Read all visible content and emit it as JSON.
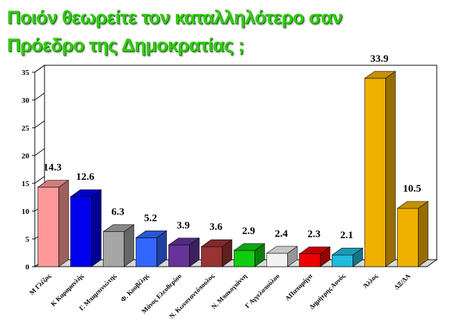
{
  "title": {
    "line1": "Ποιόν θεωρείτε τον καταλληλότερο  σαν",
    "line2": "Πρόεδρο της  Δημοκρατίας ;"
  },
  "chart_data": {
    "type": "bar",
    "title": "Ποιόν θεωρείτε τον καταλληλότερο  σαν Πρόεδρο της  Δημοκρατίας ;",
    "categories": [
      "Μ Γλέζος",
      "Κ Καραμανλής",
      "Γ. Μπαμπινιώτης",
      "Φ. Κουβέλης",
      "Μάνος Ελευθερίου",
      "Ν. Κωνσταντόπουλος",
      "Ν. Μπακογιάννη",
      "Γ Αγγελοπούλου",
      "ΑΠαπαρήγα",
      "Δημήτρης Αυνός",
      "Άλλος",
      "ΔΞ/ΔΑ"
    ],
    "values": [
      14.3,
      12.6,
      6.3,
      5.2,
      3.9,
      3.6,
      2.9,
      2.4,
      2.3,
      2.1,
      33.9,
      10.5
    ],
    "data_labels": [
      "14.3",
      "12.6",
      "6.3",
      "5.2",
      "3.9",
      "3.6",
      "2.9",
      "2.4",
      "2.3",
      "2.1",
      "33.9",
      "10.5"
    ],
    "colors": [
      "#ff9999",
      "#0000ee",
      "#a6a6a6",
      "#3366ff",
      "#663399",
      "#993333",
      "#11cc11",
      "#f2f2f2",
      "#ee0000",
      "#22bbdd",
      "#f0b000",
      "#f0b000"
    ],
    "ylim": [
      0,
      35
    ],
    "yticks": [
      "0",
      "5",
      "10",
      "15",
      "20",
      "25",
      "30",
      "35"
    ],
    "xlabel": "",
    "ylabel": "",
    "grid": false,
    "three_d": true
  }
}
